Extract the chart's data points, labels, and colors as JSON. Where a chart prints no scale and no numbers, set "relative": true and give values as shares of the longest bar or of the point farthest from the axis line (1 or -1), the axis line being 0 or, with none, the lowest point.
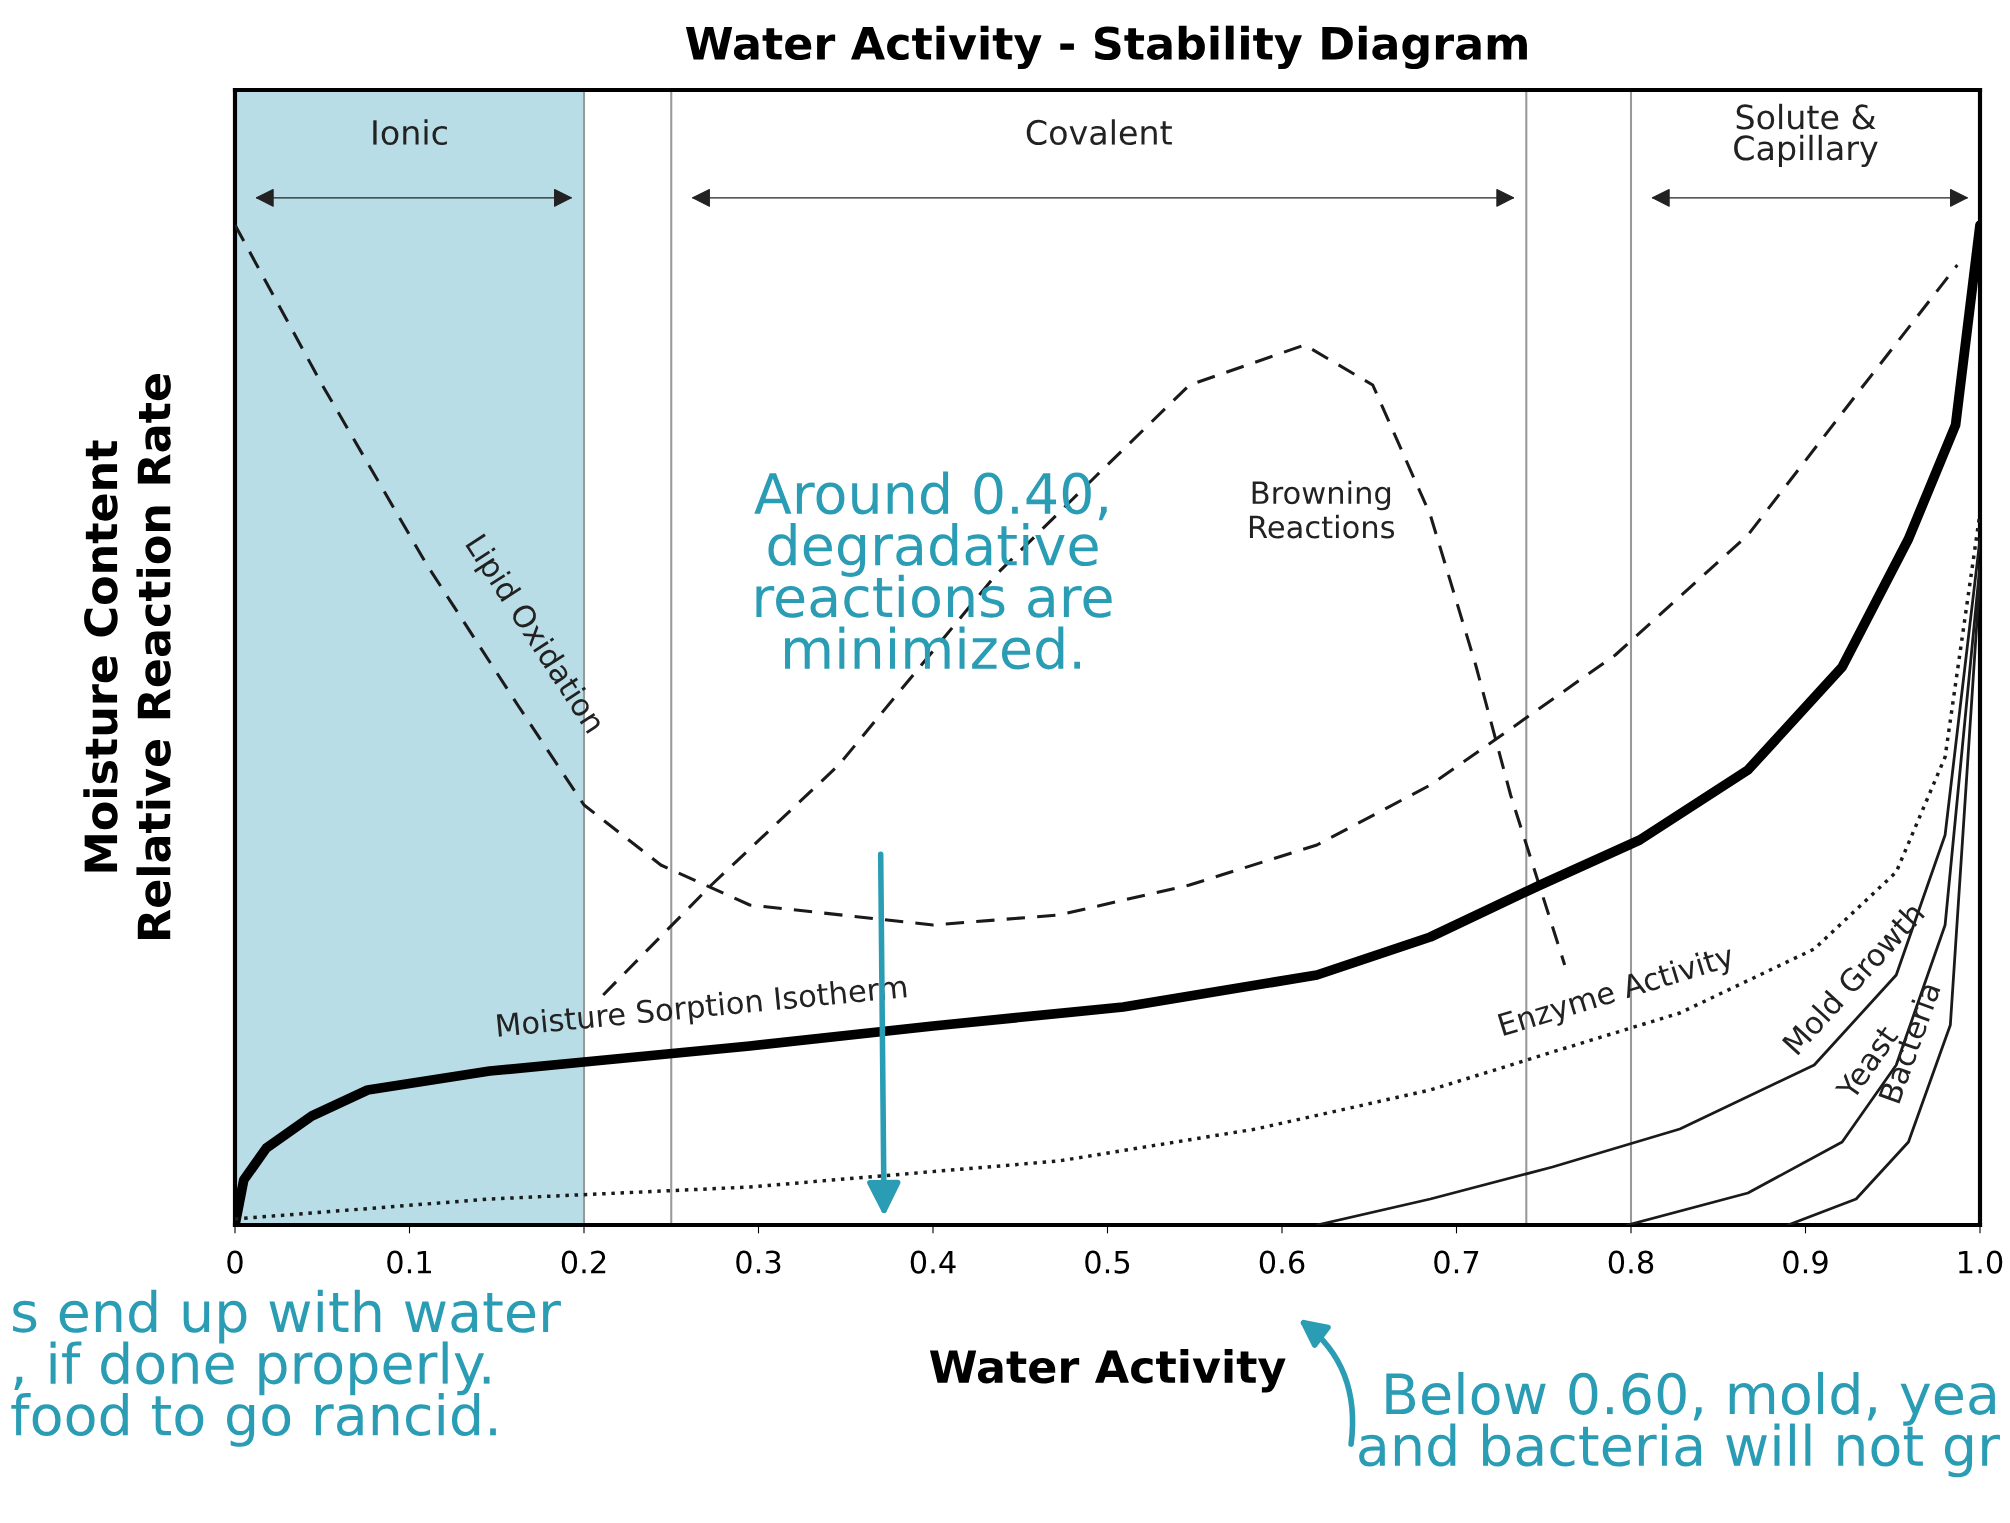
{
  "chart_data": {
    "type": "line",
    "title": "Water Activity - Stability Diagram",
    "xlabel": "Water Activity",
    "ylabel": "Moisture Content\nRelative Reaction Rate",
    "relative": true,
    "tick_labels": "x",
    "marker": "none",
    "xlim": [
      0,
      1.0
    ],
    "xticks": [
      0,
      0.1,
      0.2,
      0.3,
      0.4,
      0.5,
      0.6,
      0.7,
      0.8,
      0.9,
      {
        "value": 1.0,
        "label": "1.0"
      }
    ],
    "series": [
      {
        "name": "Lipid Oxidation",
        "color": "#1a1a1a",
        "line_style": "dashed",
        "x": [
          0,
          0.05,
          0.11,
          0.162,
          0.2,
          0.244,
          0.295,
          0.4,
          0.472,
          0.547,
          0.62,
          0.685,
          0.726,
          0.791,
          0.867,
          0.929,
          0.987
        ],
        "values": [
          1.0,
          0.84,
          0.66,
          0.52,
          0.42,
          0.36,
          0.32,
          0.3,
          0.31,
          0.34,
          0.38,
          0.44,
          0.49,
          0.57,
          0.69,
          0.83,
          0.96
        ]
      },
      {
        "name": "Browning Reactions",
        "color": "#1a1a1a",
        "line_style": "dashed",
        "x": [
          0.211,
          0.273,
          0.346,
          0.436,
          0.494,
          0.547,
          0.613,
          0.652,
          0.685,
          0.711,
          0.731,
          0.762
        ],
        "values": [
          0.23,
          0.34,
          0.46,
          0.65,
          0.75,
          0.84,
          0.88,
          0.84,
          0.71,
          0.56,
          0.43,
          0.26
        ]
      },
      {
        "name": "Moisture Sorption Isotherm",
        "color": "#000000",
        "line_style": "solid",
        "x": [
          0,
          0.005,
          0.018,
          0.044,
          0.076,
          0.146,
          0.2,
          0.295,
          0.4,
          0.509,
          0.62,
          0.685,
          0.748,
          0.805,
          0.867,
          0.921,
          0.959,
          0.986,
          1.0
        ],
        "values": [
          0,
          0.045,
          0.077,
          0.109,
          0.135,
          0.154,
          0.163,
          0.179,
          0.199,
          0.218,
          0.25,
          0.288,
          0.34,
          0.385,
          0.455,
          0.558,
          0.686,
          0.8,
          1.0
        ]
      },
      {
        "name": "Enzyme Activity",
        "color": "#1a1a1a",
        "line_style": "dotted",
        "x": [
          0,
          0.146,
          0.295,
          0.472,
          0.585,
          0.685,
          0.755,
          0.828,
          0.905,
          0.952,
          0.98,
          1.0
        ],
        "values": [
          0.006,
          0.026,
          0.038,
          0.064,
          0.096,
          0.135,
          0.173,
          0.212,
          0.276,
          0.353,
          0.468,
          0.712
        ]
      },
      {
        "name": "Mold Growth",
        "color": "#1a1a1a",
        "line_style": "solid",
        "x": [
          0.62,
          0.685,
          0.755,
          0.828,
          0.905,
          0.952,
          0.98,
          1.0
        ],
        "values": [
          0,
          0.026,
          0.058,
          0.096,
          0.16,
          0.25,
          0.39,
          0.686
        ]
      },
      {
        "name": "Yeast",
        "color": "#1a1a1a",
        "line_style": "solid",
        "x": [
          0.798,
          0.867,
          0.921,
          0.952,
          0.98,
          1.0
        ],
        "values": [
          0,
          0.032,
          0.083,
          0.16,
          0.3,
          0.66
        ]
      },
      {
        "name": "Bacteria",
        "color": "#1a1a1a",
        "line_style": "solid",
        "x": [
          0.89,
          0.929,
          0.959,
          0.983,
          1.0
        ],
        "values": [
          0,
          0.026,
          0.083,
          0.2,
          0.65
        ]
      }
    ],
    "bands": [
      {
        "axis": "x",
        "from": 0,
        "to": 0.2,
        "label": "Ionic",
        "color": "#b8dde6"
      }
    ],
    "ref_lines": [
      {
        "axis": "x",
        "value": 0.25,
        "color": "#999999"
      },
      {
        "axis": "x",
        "value": 0.74,
        "color": "#999999"
      },
      {
        "axis": "x",
        "value": 0.8,
        "color": "#999999"
      }
    ],
    "annotations": [
      "Covalent",
      "Solute &\nCapillary",
      "Around 0.40,\ndegradative\nreactions are\nminimized.",
      "Below 0.60, mold, yea\nand bacteria will not gr",
      "s end up with water\n, if done properly.\nfood to go rancid."
    ]
  }
}
